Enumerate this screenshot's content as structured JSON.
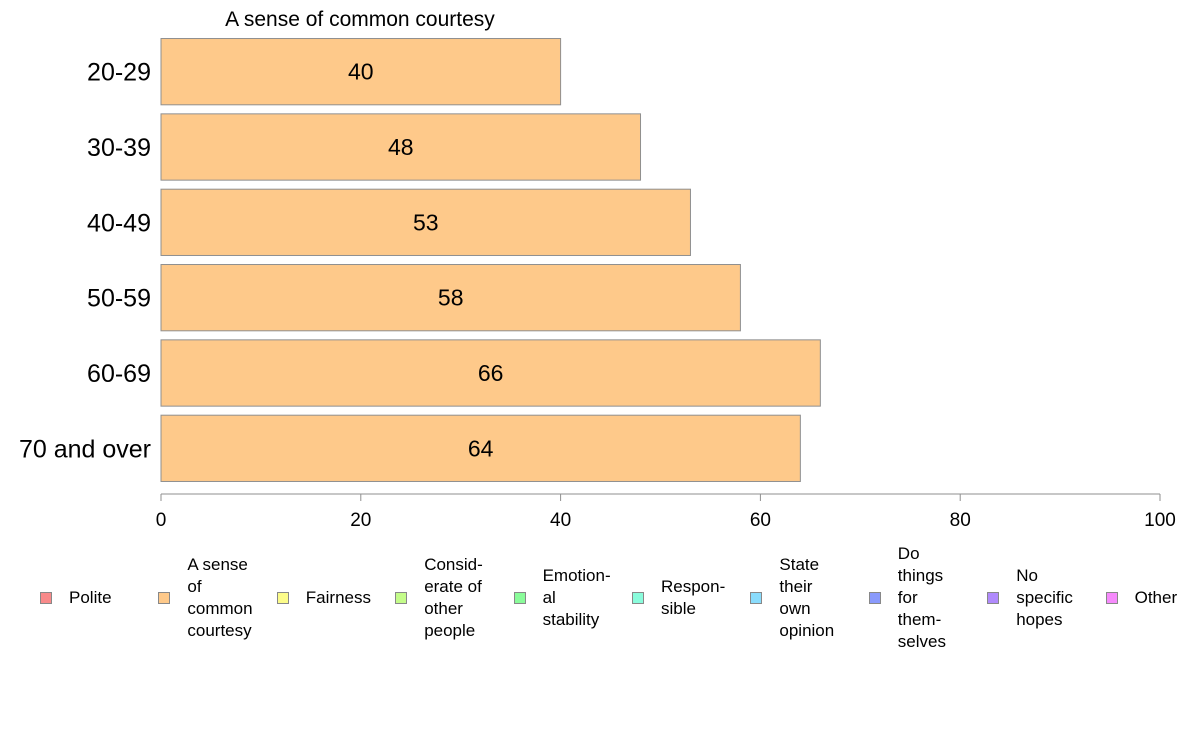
{
  "chart_data": {
    "type": "bar",
    "orientation": "horizontal",
    "title": "A sense of common courtesy",
    "categories": [
      "20-29",
      "30-39",
      "40-49",
      "50-59",
      "60-69",
      "70 and over"
    ],
    "series": [
      {
        "name": "A sense of common courtesy",
        "values": [
          40,
          48,
          53,
          58,
          66,
          64
        ]
      }
    ],
    "value_labels": [
      "40",
      "48",
      "53",
      "58",
      "66",
      "64"
    ],
    "xlim": [
      0,
      100
    ],
    "xticks": [
      "0",
      "20",
      "40",
      "60",
      "80",
      "100"
    ],
    "xlabel": "",
    "ylabel": "",
    "grid": false,
    "legend_position": "bottom",
    "bar_color": "#fec98a",
    "bar_stroke": "#8f8f8f",
    "axis_color": "#8f8f8f"
  },
  "legend": {
    "items": [
      {
        "label": "Polite",
        "color": "#f88a8a"
      },
      {
        "label": "A sense\nof\ncommon\ncourtesy",
        "color": "#fec98a"
      },
      {
        "label": "Fairness",
        "color": "#fcfc8a"
      },
      {
        "label": "Consid-\nerate of\nother\npeople",
        "color": "#c4fc8a"
      },
      {
        "label": "Emotion-\nal\nstability",
        "color": "#8afc9a"
      },
      {
        "label": "Respon-\nsible",
        "color": "#8afcdc"
      },
      {
        "label": "State\ntheir\nown\nopinion",
        "color": "#8adcfc"
      },
      {
        "label": "Do\nthings\nfor\nthem-\nselves",
        "color": "#8a9afc"
      },
      {
        "label": "No\nspecific\nhopes",
        "color": "#b08afc"
      },
      {
        "label": "Other",
        "color": "#f68afc"
      }
    ]
  }
}
